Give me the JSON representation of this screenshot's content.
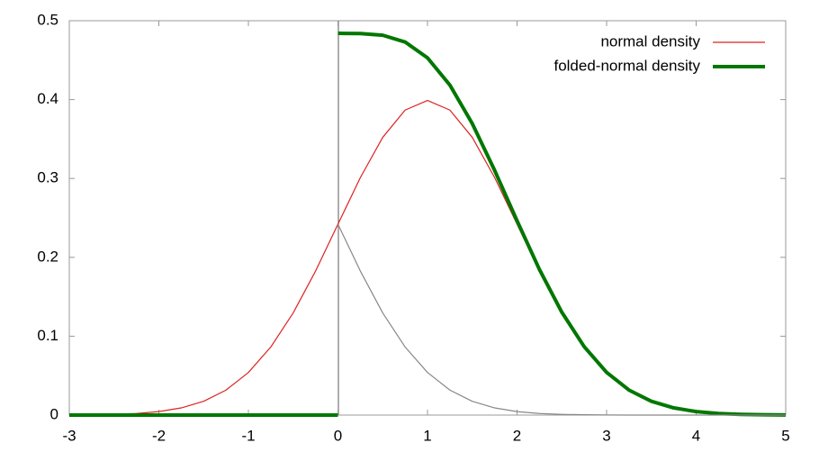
{
  "chart_data": {
    "type": "line",
    "xlim": [
      -3,
      5
    ],
    "xticks": [
      -3,
      -2,
      -1,
      0,
      1,
      2,
      3,
      4,
      5
    ],
    "ylim": [
      0,
      0.5
    ],
    "yticks": [
      0,
      0.1,
      0.2,
      0.3,
      0.4,
      0.5
    ],
    "legend": "top-right",
    "series": [
      {
        "name": "normal density",
        "color": "#dd2222",
        "width": 1.2,
        "x": [
          -3,
          -2.75,
          -2.5,
          -2.25,
          -2,
          -1.75,
          -1.5,
          -1.25,
          -1,
          -0.75,
          -0.5,
          -0.25,
          0,
          0.25,
          0.5,
          0.75,
          1,
          1.25,
          1.5,
          1.75,
          2,
          2.25,
          2.5,
          2.75,
          3,
          3.25,
          3.5,
          3.75,
          4,
          4.25,
          4.5,
          4.75,
          5
        ],
        "values": [
          0.0001,
          0.0004,
          0.0009,
          0.002,
          0.0044,
          0.0091,
          0.0175,
          0.0317,
          0.054,
          0.0863,
          0.1295,
          0.1826,
          0.242,
          0.3011,
          0.3521,
          0.3867,
          0.3989,
          0.3867,
          0.3521,
          0.3011,
          0.242,
          0.1826,
          0.1295,
          0.0863,
          0.054,
          0.0317,
          0.0175,
          0.0091,
          0.0044,
          0.002,
          0.0009,
          0.0004,
          0.0001
        ]
      },
      {
        "name": "folded-normal density",
        "color": "#007700",
        "width": 4,
        "x": [
          -3,
          0,
          0,
          0,
          0.25,
          0.5,
          0.75,
          1,
          1.25,
          1.5,
          1.75,
          2,
          2.25,
          2.5,
          2.75,
          3,
          3.25,
          3.5,
          3.75,
          4,
          4.25,
          4.5,
          4.75,
          5
        ],
        "values": [
          0,
          0,
          null,
          0.484,
          0.4837,
          0.4816,
          0.473,
          0.4529,
          0.4184,
          0.3696,
          0.3102,
          0.2464,
          0.1846,
          0.1304,
          0.0867,
          0.0541,
          0.0317,
          0.0175,
          0.0091,
          0.0044,
          0.002,
          0.0009,
          0.0004,
          0.0001
        ]
      },
      {
        "color": "#888888",
        "width": 1.2,
        "x": [
          0,
          0.25,
          0.5,
          0.75,
          1,
          1.25,
          1.5,
          1.75,
          2,
          2.25,
          2.5,
          2.75,
          3,
          3.25,
          3.5,
          3.75,
          4,
          4.25,
          4.5,
          4.75,
          5
        ],
        "values": [
          0.242,
          0.1826,
          0.1295,
          0.0863,
          0.054,
          0.0317,
          0.0175,
          0.0091,
          0.0044,
          0.002,
          0.0009,
          0.0004,
          0.0001,
          0,
          0,
          0,
          0,
          0,
          0,
          0,
          0
        ]
      }
    ]
  }
}
